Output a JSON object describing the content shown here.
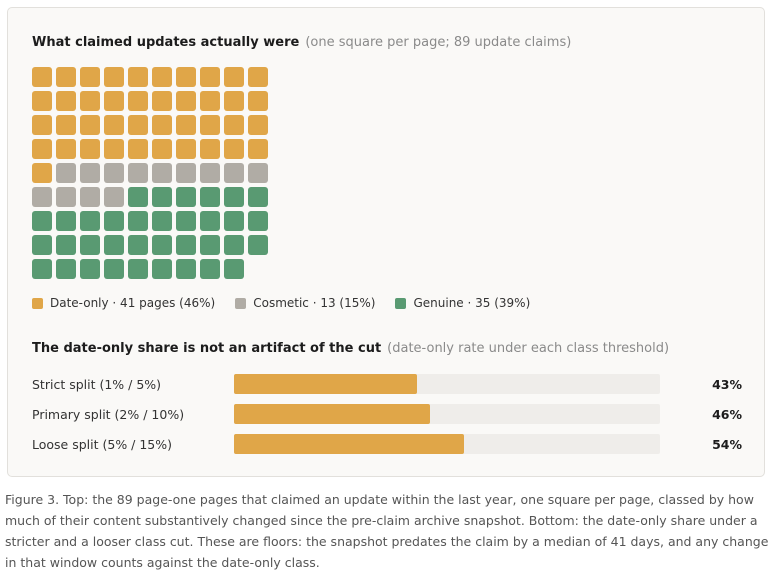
{
  "top": {
    "title": "What claimed updates actually were",
    "subtitle": "(one square per page; 89 update claims)"
  },
  "bottom": {
    "title": "The date-only share is not an artifact of the cut",
    "subtitle": "(date-only rate under each class threshold)"
  },
  "legend": [
    {
      "label": "Date-only · 41 pages (46%)",
      "color": "#e0a648"
    },
    {
      "label": "Cosmetic · 13 (15%)",
      "color": "#b0aca5"
    },
    {
      "label": "Genuine · 35 (39%)",
      "color": "#599a72"
    }
  ],
  "caption": "Figure 3. Top: the 89 page-one pages that claimed an update within the last year, one square per page, classed by how much of their content substantively changed since the pre-claim archive snapshot. Bottom: the date-only share under a stricter and a looser class cut. These are floors: the snapshot predates the claim by a median of 41 days, and any change in that window counts against the date-only class.",
  "chart_data": [
    {
      "type": "waffle",
      "title": "What claimed updates actually were",
      "subtitle": "(one square per page; 89 update claims)",
      "columns": 10,
      "total": 89,
      "categories": [
        {
          "name": "Date-only",
          "count": 41,
          "percent": 46,
          "color": "#e0a648"
        },
        {
          "name": "Cosmetic",
          "count": 13,
          "percent": 15,
          "color": "#b0aca5"
        },
        {
          "name": "Genuine",
          "count": 35,
          "percent": 39,
          "color": "#599a72"
        }
      ],
      "legend_placement": "bottom"
    },
    {
      "type": "bar",
      "orientation": "horizontal",
      "title": "The date-only share is not an artifact of the cut",
      "subtitle": "(date-only rate under each class threshold)",
      "categories": [
        "Strict split (1% / 5%)",
        "Primary split (2% / 10%)",
        "Loose split (5% / 15%)"
      ],
      "values": [
        43,
        46,
        54
      ],
      "value_labels": [
        "43%",
        "46%",
        "54%"
      ],
      "xlim": [
        0,
        100
      ],
      "bar_color": "#e0a648",
      "track_color": "#efedea"
    }
  ]
}
